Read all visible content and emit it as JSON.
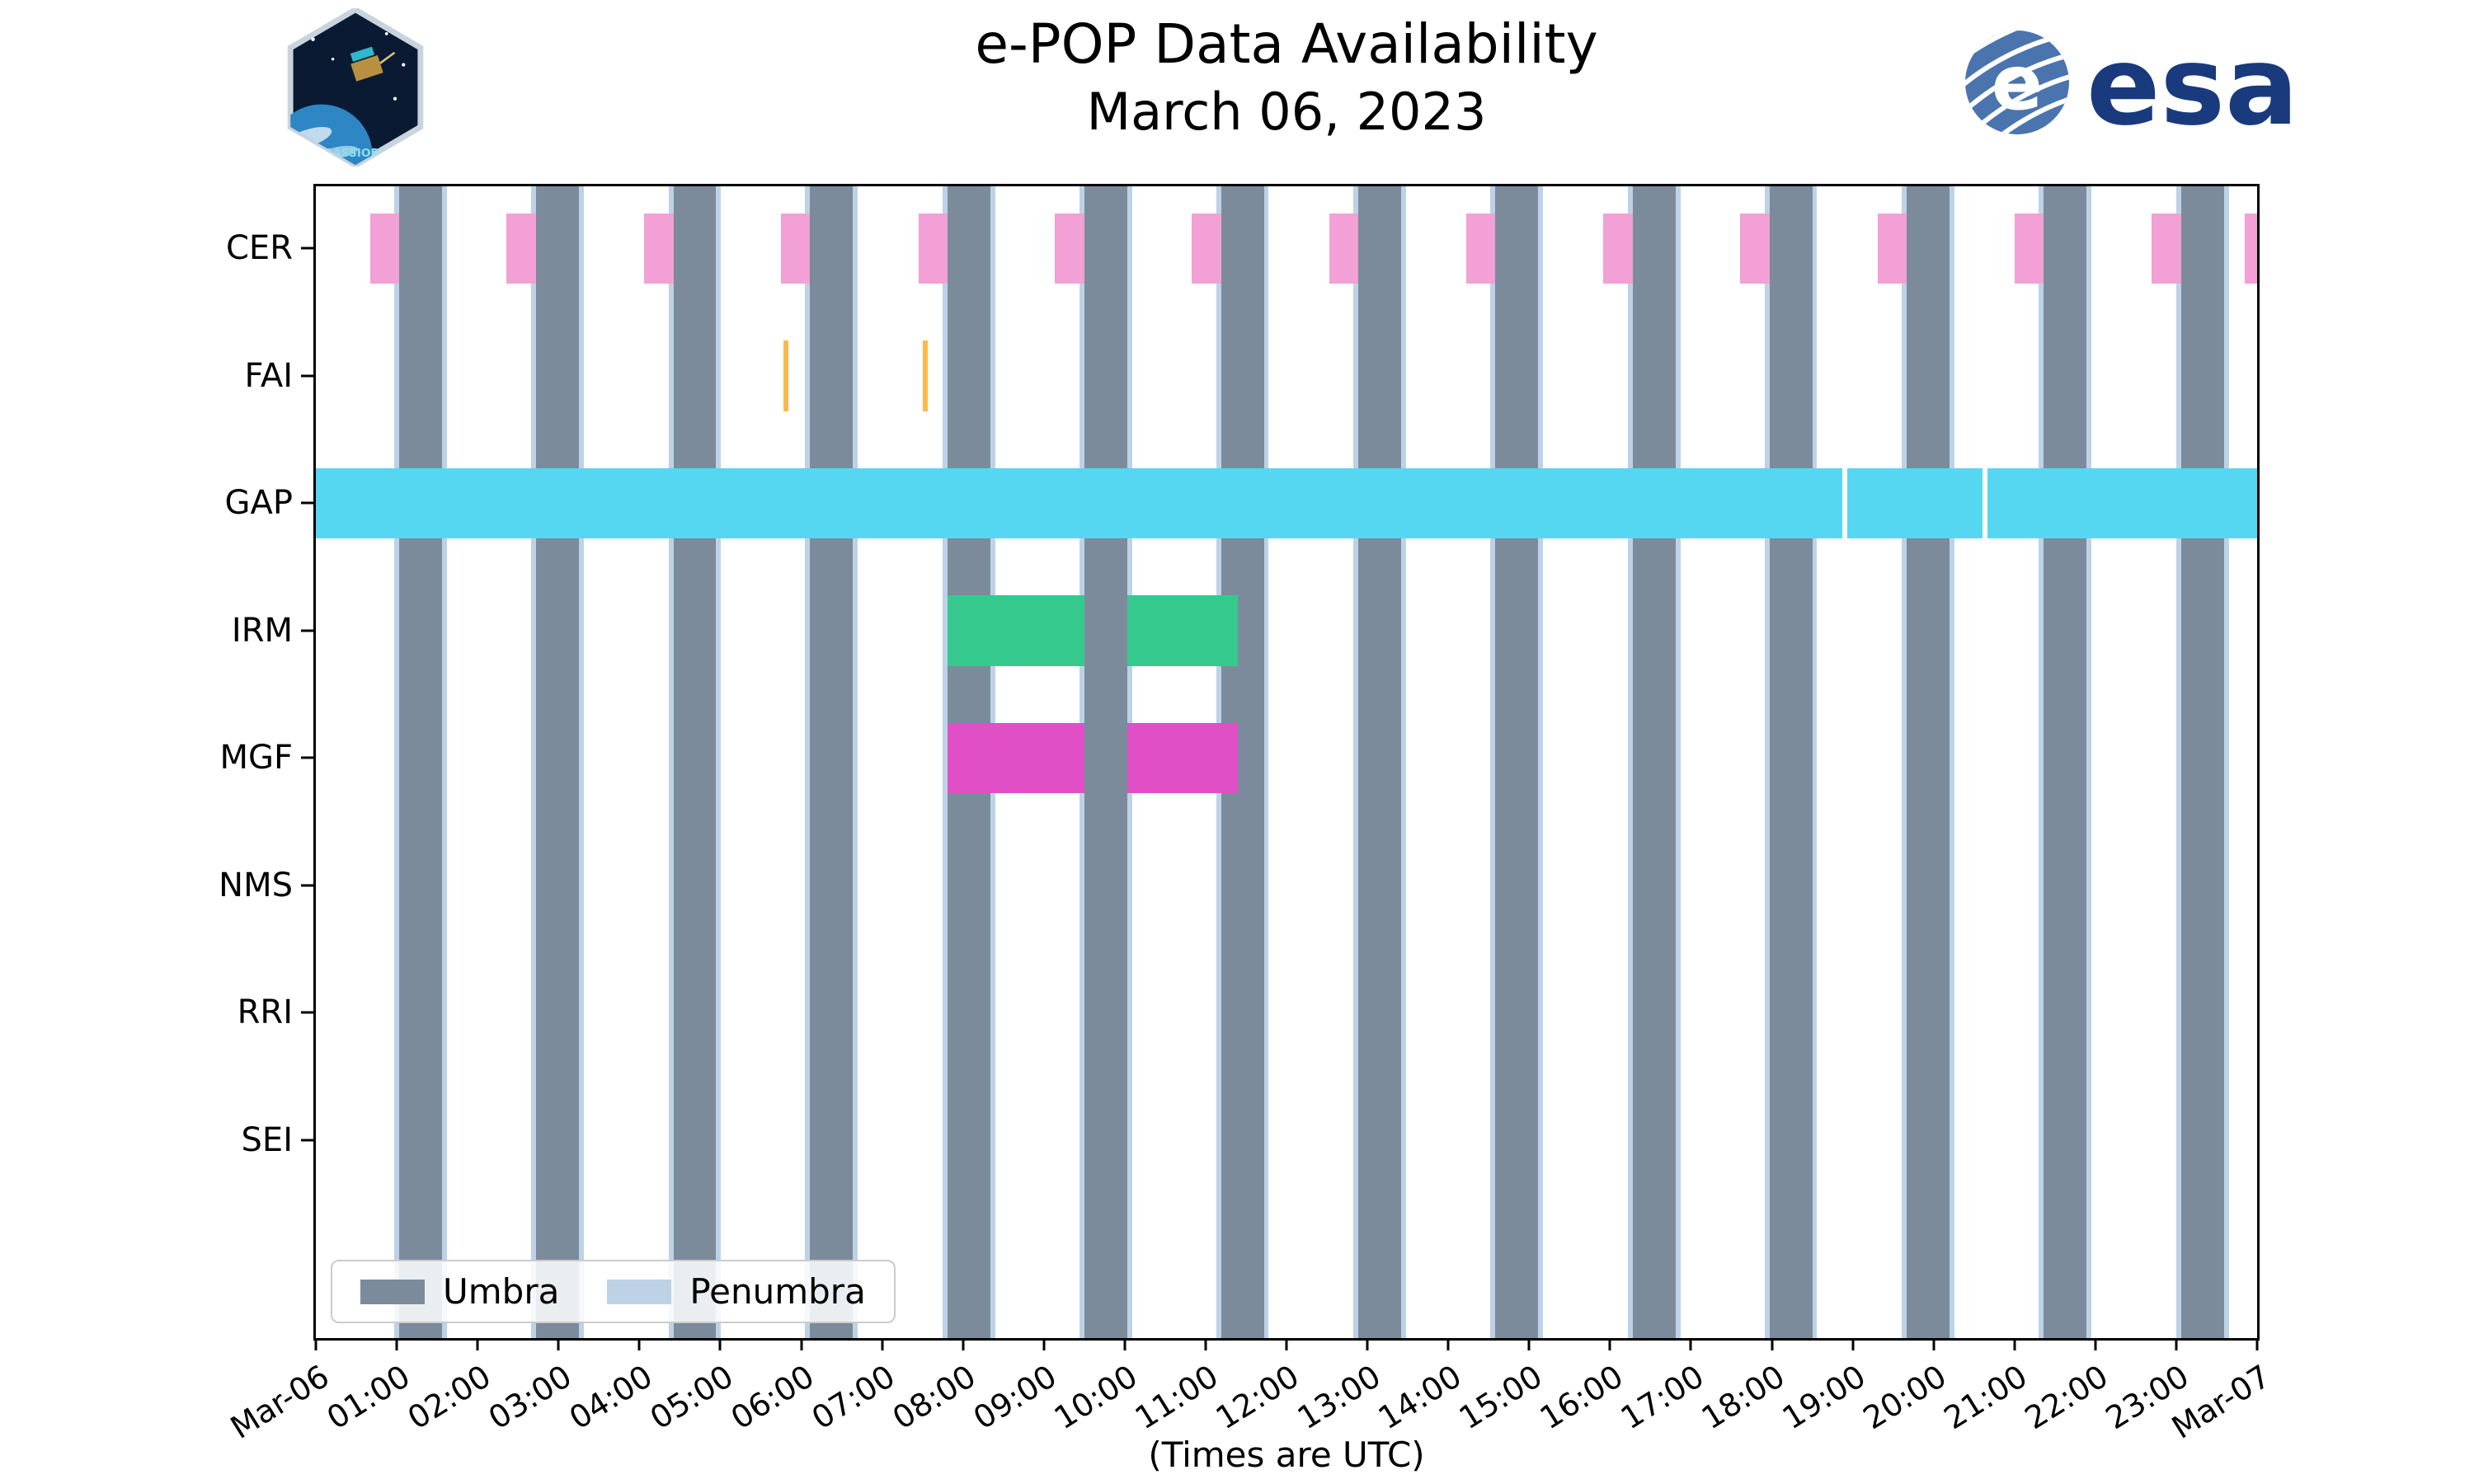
{
  "header": {
    "title": "e-POP Data Availability",
    "subtitle": "March 06, 2023",
    "cassiope_patch_label": "CASSIOPE",
    "esa_wordmark": "esa"
  },
  "axis": {
    "xlabel": "(Times are UTC)",
    "x_tick_labels": [
      "Mar-06",
      "01:00",
      "02:00",
      "03:00",
      "04:00",
      "05:00",
      "06:00",
      "07:00",
      "08:00",
      "09:00",
      "10:00",
      "11:00",
      "12:00",
      "13:00",
      "14:00",
      "15:00",
      "16:00",
      "17:00",
      "18:00",
      "19:00",
      "20:00",
      "21:00",
      "22:00",
      "23:00",
      "Mar-07"
    ],
    "y_tick_labels": [
      "CER",
      "FAI",
      "GAP",
      "IRM",
      "MGF",
      "NMS",
      "RRI",
      "SEI"
    ]
  },
  "legend": {
    "items": [
      {
        "label": "Umbra",
        "color": "#7b8b9b"
      },
      {
        "label": "Penumbra",
        "color": "#bdd2e6"
      }
    ]
  },
  "chart_data": {
    "type": "timeline",
    "title": "e-POP Data Availability",
    "date": "March 06, 2023",
    "x_units": "hours UTC from Mar-06 00:00 to Mar-07 00:00",
    "x_range_hours": [
      0,
      24
    ],
    "x_tick_interval_hours": 1,
    "rows": [
      "CER",
      "FAI",
      "GAP",
      "IRM",
      "MGF",
      "NMS",
      "RRI",
      "SEI"
    ],
    "colors": {
      "umbra": "#7b8b9b",
      "penumbra": "#bdd2e6"
    },
    "penumbra_width_hours": 0.06,
    "umbra_intervals_hours": [
      [
        1.03,
        1.56
      ],
      [
        2.72,
        3.25
      ],
      [
        4.42,
        4.95
      ],
      [
        6.11,
        6.64
      ],
      [
        7.81,
        8.34
      ],
      [
        9.5,
        10.03
      ],
      [
        11.19,
        11.72
      ],
      [
        12.89,
        13.42
      ],
      [
        14.58,
        15.11
      ],
      [
        16.28,
        16.81
      ],
      [
        17.97,
        18.5
      ],
      [
        19.67,
        20.2
      ],
      [
        21.36,
        21.89
      ],
      [
        23.06,
        23.59
      ]
    ],
    "series": [
      {
        "row": "CER",
        "color": "#f2a0d5",
        "intervals_hours": [
          [
            0.67,
            1.03
          ],
          [
            2.36,
            2.72
          ],
          [
            4.06,
            4.42
          ],
          [
            5.75,
            6.11
          ],
          [
            7.45,
            7.81
          ],
          [
            9.14,
            9.5
          ],
          [
            10.83,
            11.19
          ],
          [
            12.53,
            12.89
          ],
          [
            14.22,
            14.58
          ],
          [
            15.92,
            16.28
          ],
          [
            17.61,
            17.97
          ],
          [
            19.31,
            19.67
          ],
          [
            21.0,
            21.36
          ],
          [
            22.7,
            23.06
          ],
          [
            23.85,
            24.0
          ]
        ]
      },
      {
        "row": "FAI",
        "color": "#fcb94b",
        "intervals_hours": [
          [
            5.78,
            5.84
          ],
          [
            7.5,
            7.56
          ]
        ]
      },
      {
        "row": "GAP",
        "color": "#55d7f2",
        "intervals_hours": [
          [
            0.0,
            18.87
          ],
          [
            18.93,
            20.61
          ],
          [
            20.67,
            24.0
          ]
        ]
      },
      {
        "row": "IRM",
        "color": "#36c98e",
        "intervals_hours": [
          [
            7.81,
            9.5
          ],
          [
            10.03,
            11.4
          ]
        ]
      },
      {
        "row": "MGF",
        "color": "#e14fc6",
        "intervals_hours": [
          [
            7.81,
            9.5
          ],
          [
            10.03,
            11.4
          ]
        ]
      },
      {
        "row": "NMS",
        "color": "#999999",
        "intervals_hours": []
      },
      {
        "row": "RRI",
        "color": "#999999",
        "intervals_hours": []
      },
      {
        "row": "SEI",
        "color": "#999999",
        "intervals_hours": []
      }
    ]
  }
}
